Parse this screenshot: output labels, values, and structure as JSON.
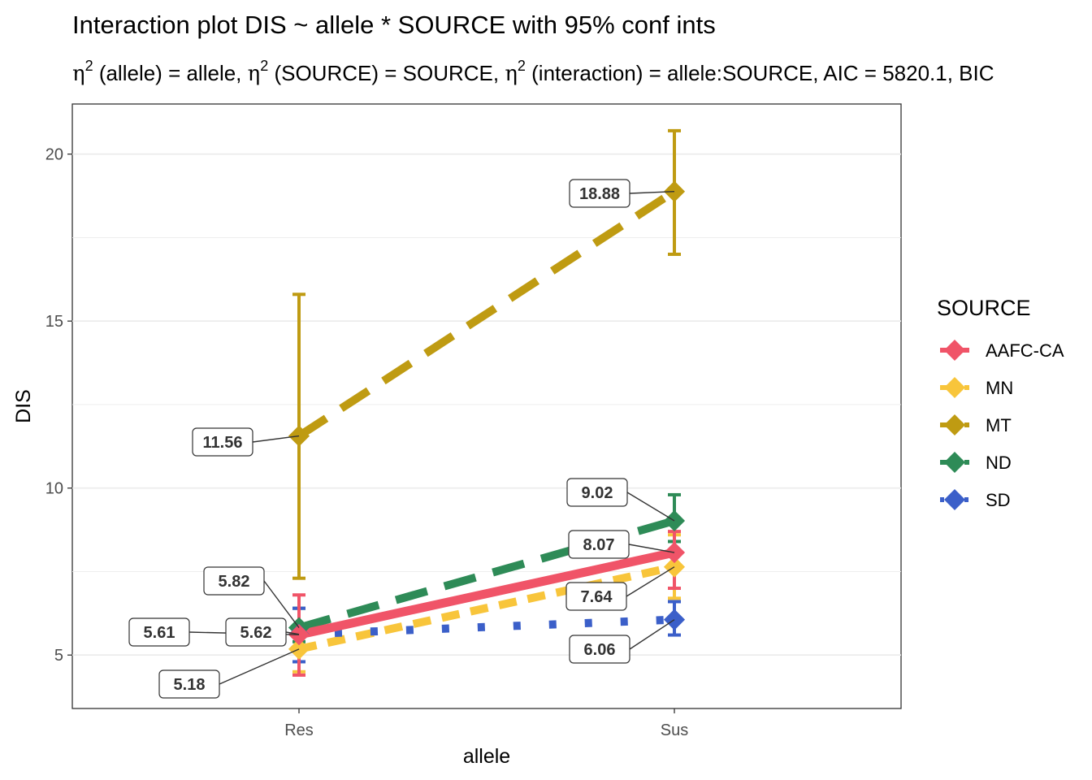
{
  "chart_data": {
    "type": "line",
    "title": "Interaction plot  DIS ~ allele * SOURCE with 95% conf ints",
    "subtitle": {
      "eta": "η",
      "sup": "2",
      "part1": " (allele) = allele, ",
      "part2": " (SOURCE) = SOURCE, ",
      "part3": " (interaction) = allele:SOURCE, AIC = 5820.1, BIC"
    },
    "xlabel": "allele",
    "ylabel": "DIS",
    "categories": [
      "Res",
      "Sus"
    ],
    "ylim": [
      3.4,
      21.5
    ],
    "yticks": [
      5,
      10,
      15,
      20
    ],
    "grid": true,
    "legend": {
      "title": "SOURCE",
      "position": "right"
    },
    "series": [
      {
        "name": "AAFC-CA",
        "color": "#f05468",
        "dash": "solid",
        "values": [
          5.61,
          8.07
        ],
        "ci_low": [
          4.4,
          7.0
        ],
        "ci_high": [
          6.8,
          8.7
        ],
        "labels": [
          "5.61",
          "8.07"
        ]
      },
      {
        "name": "MN",
        "color": "#f8c53b",
        "dash": "dashed-short",
        "values": [
          5.18,
          7.64
        ],
        "ci_low": [
          4.5,
          6.7
        ],
        "ci_high": [
          5.6,
          8.6
        ],
        "labels": [
          "5.18",
          "7.64"
        ]
      },
      {
        "name": "MT",
        "color": "#bf9b12",
        "dash": "dashed-long",
        "values": [
          11.56,
          18.88
        ],
        "ci_low": [
          7.3,
          17.0
        ],
        "ci_high": [
          15.8,
          20.7
        ],
        "labels": [
          "11.56",
          "18.88"
        ]
      },
      {
        "name": "ND",
        "color": "#2e8b57",
        "dash": "dashed-long",
        "values": [
          5.82,
          9.02
        ],
        "ci_low": [
          5.4,
          8.4
        ],
        "ci_high": [
          6.4,
          9.8
        ],
        "labels": [
          "5.82",
          "9.02"
        ]
      },
      {
        "name": "SD",
        "color": "#3b5fc9",
        "dash": "dotted",
        "values": [
          5.62,
          6.06
        ],
        "ci_low": [
          4.8,
          5.6
        ],
        "ci_high": [
          6.4,
          6.6
        ],
        "labels": [
          "5.62",
          "6.06"
        ]
      }
    ]
  }
}
